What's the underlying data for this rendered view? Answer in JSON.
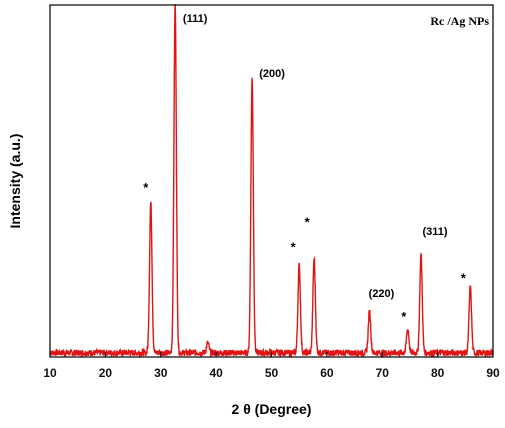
{
  "chart_data": {
    "type": "line",
    "title": "",
    "xlabel": "2 θ (Degree)",
    "ylabel": "Intensity (a.u.)",
    "xlim": [
      10,
      90
    ],
    "ylim": [
      0,
      1
    ],
    "y_ticks_shown": false,
    "xticks": [
      10,
      20,
      30,
      40,
      50,
      60,
      70,
      80,
      90
    ],
    "legend": {
      "text": "Rc /Ag NPs",
      "position": "top-right"
    },
    "series": [
      {
        "name": "Rc /Ag NPs",
        "color": "#e01414",
        "baseline": 0.012,
        "peaks": [
          {
            "x": 28.2,
            "y": 0.44
          },
          {
            "x": 32.6,
            "y": 1.0
          },
          {
            "x": 38.5,
            "y": 0.04
          },
          {
            "x": 46.5,
            "y": 0.79
          },
          {
            "x": 55.0,
            "y": 0.26
          },
          {
            "x": 57.7,
            "y": 0.28
          },
          {
            "x": 67.7,
            "y": 0.13
          },
          {
            "x": 74.6,
            "y": 0.08
          },
          {
            "x": 77.0,
            "y": 0.29
          },
          {
            "x": 85.9,
            "y": 0.2
          }
        ]
      }
    ],
    "annotations": [
      {
        "text": "(111)",
        "x": 32.6
      },
      {
        "text": "(200)",
        "x": 46.5
      },
      {
        "text": "(220)",
        "x": 67.7
      },
      {
        "text": "(311)",
        "x": 77.0
      },
      {
        "text": "*",
        "x": 28.2
      },
      {
        "text": "*",
        "x": 55.0
      },
      {
        "text": "*",
        "x": 57.7
      },
      {
        "text": "*",
        "x": 74.6
      },
      {
        "text": "*",
        "x": 85.9
      }
    ]
  }
}
